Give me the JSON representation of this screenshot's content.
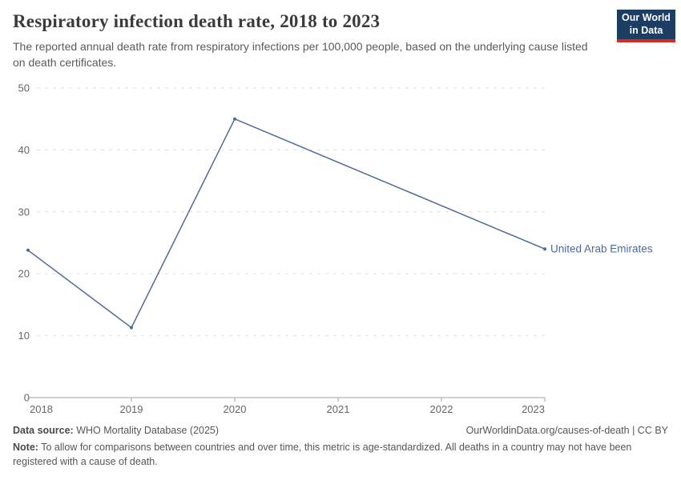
{
  "header": {
    "title": "Respiratory infection death rate, 2018 to 2023",
    "subtitle": "The reported annual death rate from respiratory infections per 100,000 people, based on the underlying cause listed on death certificates.",
    "logo": {
      "line1": "Our World",
      "line2": "in Data"
    }
  },
  "chart_data": {
    "type": "line",
    "title": "Respiratory infection death rate, 2018 to 2023",
    "xlabel": "",
    "ylabel": "",
    "xlim": [
      2018,
      2023
    ],
    "ylim": [
      0,
      50
    ],
    "x_ticks": [
      "2018",
      "2019",
      "2020",
      "2021",
      "2022",
      "2023"
    ],
    "y_ticks": [
      0,
      10,
      20,
      30,
      40,
      50
    ],
    "grid": "horizontal-dashed",
    "legend_position": "end-of-line-label",
    "series": [
      {
        "name": "United Arab Emirates",
        "color": "#4c6a9c",
        "points": [
          {
            "x": 2018,
            "y": 23.8
          },
          {
            "x": 2019,
            "y": 11.3
          },
          {
            "x": 2020,
            "y": 45
          },
          {
            "x": 2023,
            "y": 24
          }
        ]
      }
    ]
  },
  "footer": {
    "datasource_label": "Data source:",
    "datasource_text": " WHO Mortality Database (2025)",
    "attribution": "OurWorldinData.org/causes-of-death | CC BY",
    "note_label": "Note:",
    "note_text": " To allow for comparisons between countries and over time, this metric is age-standardized. All deaths in a country may not have been registered with a cause of death."
  },
  "colors": {
    "accent_line": "#4c6a9c",
    "gridline": "#dedede",
    "axis": "#a2a2a2",
    "tick_text": "#666666",
    "logo_navy": "#1d3d63",
    "logo_red": "#d42b20"
  }
}
